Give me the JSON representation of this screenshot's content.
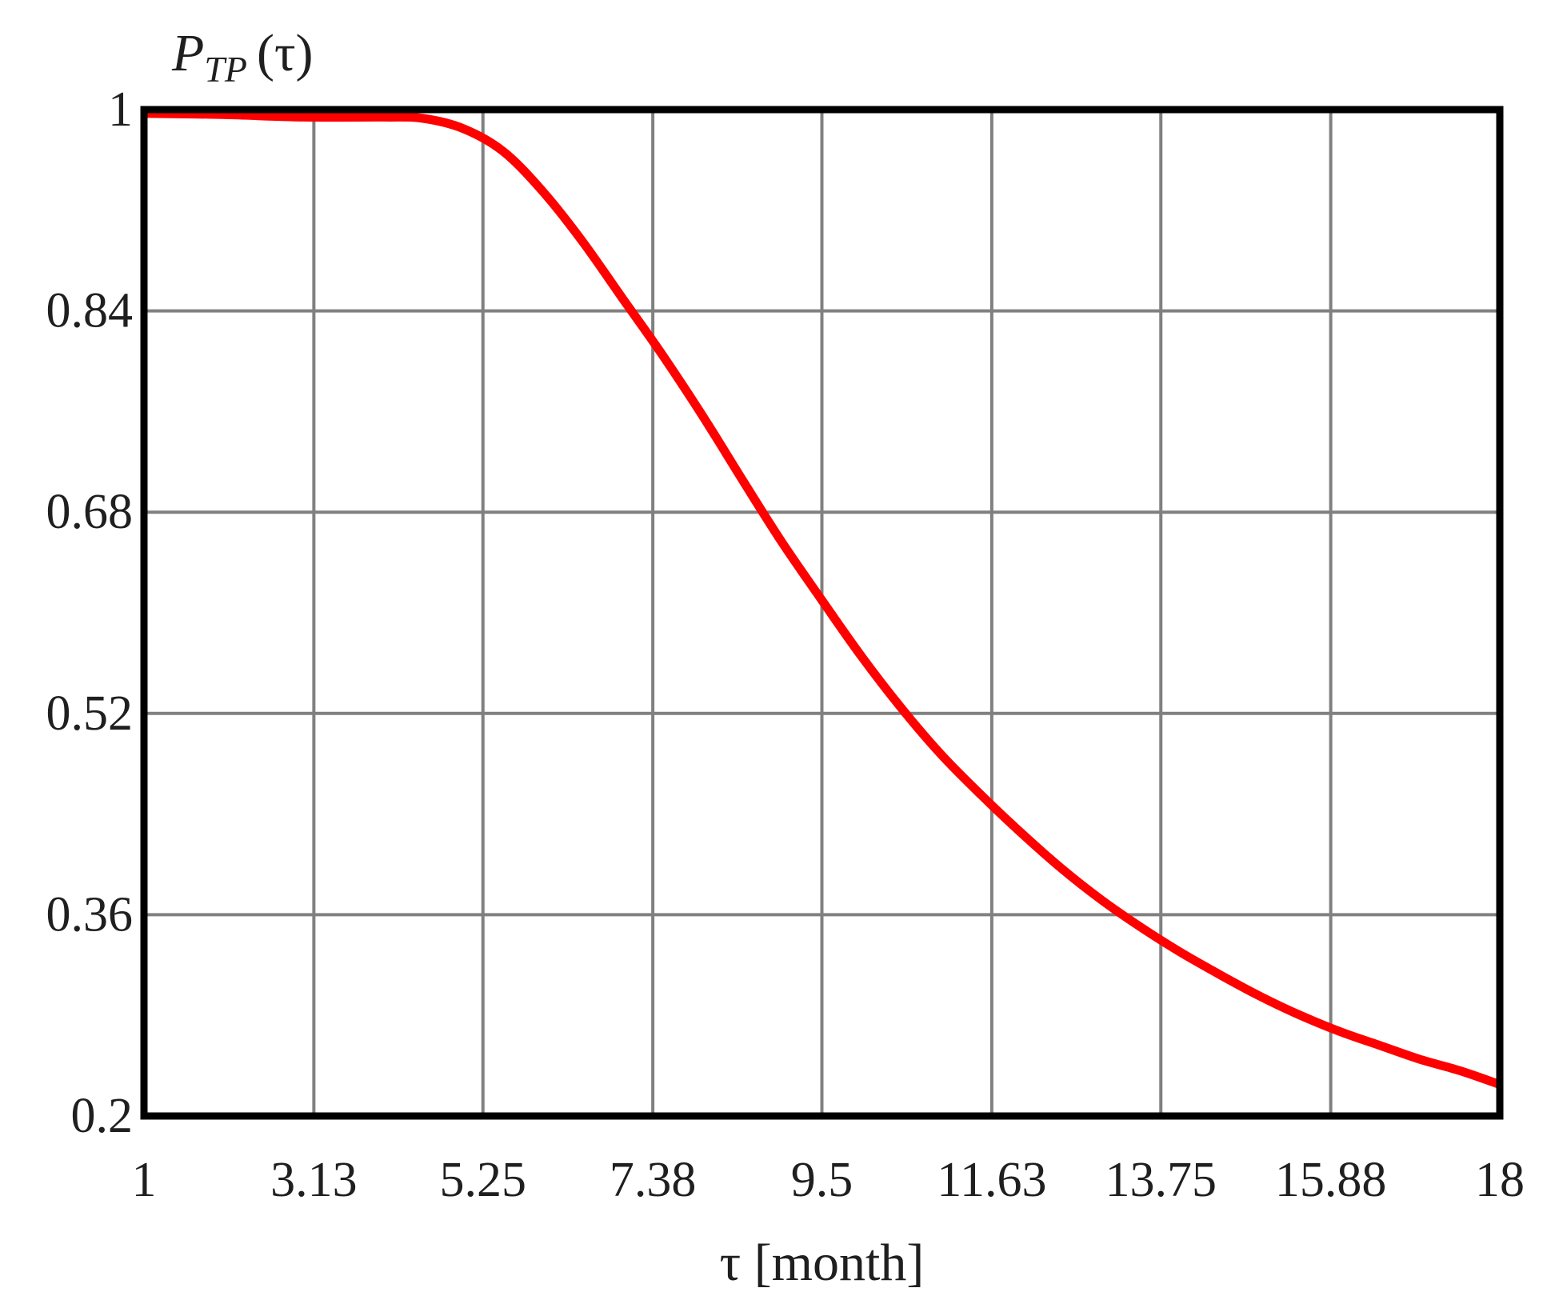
{
  "chart_data": {
    "type": "line",
    "title": "",
    "xlabel": "τ [month]",
    "ylabel": {
      "main": "P",
      "sub": "TP",
      "arg": "(τ)"
    },
    "xlim": [
      1,
      18
    ],
    "ylim": [
      0.2,
      1
    ],
    "x_ticks": [
      1,
      3.13,
      5.25,
      7.38,
      9.5,
      11.63,
      13.75,
      15.88,
      18
    ],
    "x_tick_labels": [
      "1",
      "3.13",
      "5.25",
      "7.38",
      "9.5",
      "11.63",
      "13.75",
      "15.88",
      "18"
    ],
    "y_ticks": [
      0.2,
      0.36,
      0.52,
      0.68,
      0.84,
      1
    ],
    "y_tick_labels": [
      "0.2",
      "0.36",
      "0.52",
      "0.68",
      "0.84",
      "1"
    ],
    "grid": true,
    "colors": {
      "line": "#ff0000",
      "grid": "#808080",
      "frame": "#000000"
    },
    "series": [
      {
        "x": [
          1,
          2,
          3,
          4,
          4.5,
          5,
          5.5,
          6,
          6.5,
          7,
          7.5,
          8,
          8.5,
          9,
          9.5,
          10,
          10.5,
          11,
          11.5,
          12,
          12.5,
          13,
          13.5,
          14,
          14.5,
          15,
          15.5,
          16,
          16.5,
          17,
          17.5,
          18
        ],
        "y": [
          0.997,
          0.996,
          0.994,
          0.994,
          0.993,
          0.985,
          0.967,
          0.935,
          0.895,
          0.85,
          0.805,
          0.757,
          0.706,
          0.656,
          0.61,
          0.565,
          0.524,
          0.487,
          0.455,
          0.425,
          0.397,
          0.372,
          0.35,
          0.33,
          0.312,
          0.295,
          0.28,
          0.267,
          0.256,
          0.245,
          0.236,
          0.225
        ]
      }
    ]
  }
}
